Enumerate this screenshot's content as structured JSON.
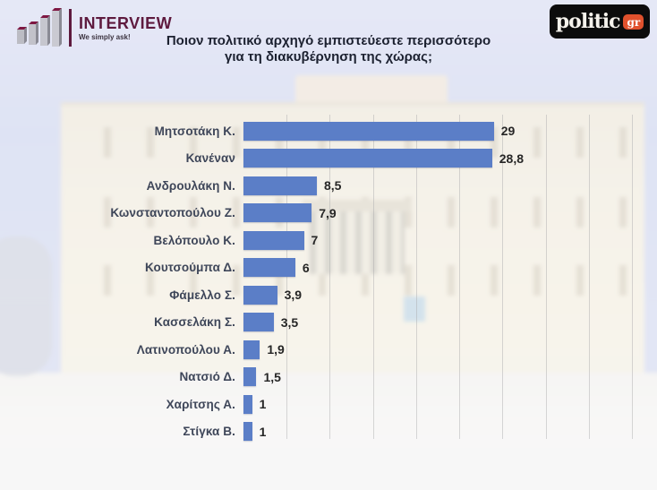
{
  "brand": {
    "interview": {
      "name": "INTERVIEW",
      "tagline": "We simply ask!"
    },
    "politic": {
      "name": "politic",
      "tld": "gr"
    }
  },
  "title": {
    "line1": "Ποιον πολιτικό αρχηγό εμπιστεύεστε περισσότερο",
    "line2": "για τη διακυβέρνηση της χώρας;"
  },
  "chart_data": {
    "type": "bar",
    "orientation": "horizontal",
    "title": "Ποιον πολιτικό αρχηγό εμπιστεύεστε περισσότερο για τη διακυβέρνηση της χώρας;",
    "categories": [
      "Μητσοτάκη Κ.",
      "Κανέναν",
      "Ανδρουλάκη Ν.",
      "Κωνσταντοπούλου Ζ.",
      "Βελόπουλο Κ.",
      "Κουτσούμπα Δ.",
      "Φάμελλο Σ.",
      "Κασσελάκη Σ.",
      "Λατινοπούλου Α.",
      "Νατσιό Δ.",
      "Χαρίτσης Α.",
      "Στίγκα Β."
    ],
    "values": [
      29,
      28.8,
      8.5,
      7.9,
      7,
      6,
      3.9,
      3.5,
      1.9,
      1.5,
      1,
      1
    ],
    "value_labels": [
      "29",
      "28,8",
      "8,5",
      "7,9",
      "7",
      "6",
      "3,9",
      "3,5",
      "1,9",
      "1,5",
      "1",
      "1"
    ],
    "xlim": [
      0,
      45
    ],
    "grid_step": 5,
    "grid": true,
    "legend": false,
    "bar_color": "#5b7ec7",
    "label_color": "#3e4659",
    "value_color": "#262626",
    "background": "faded photo of Hellenic Parliament"
  }
}
